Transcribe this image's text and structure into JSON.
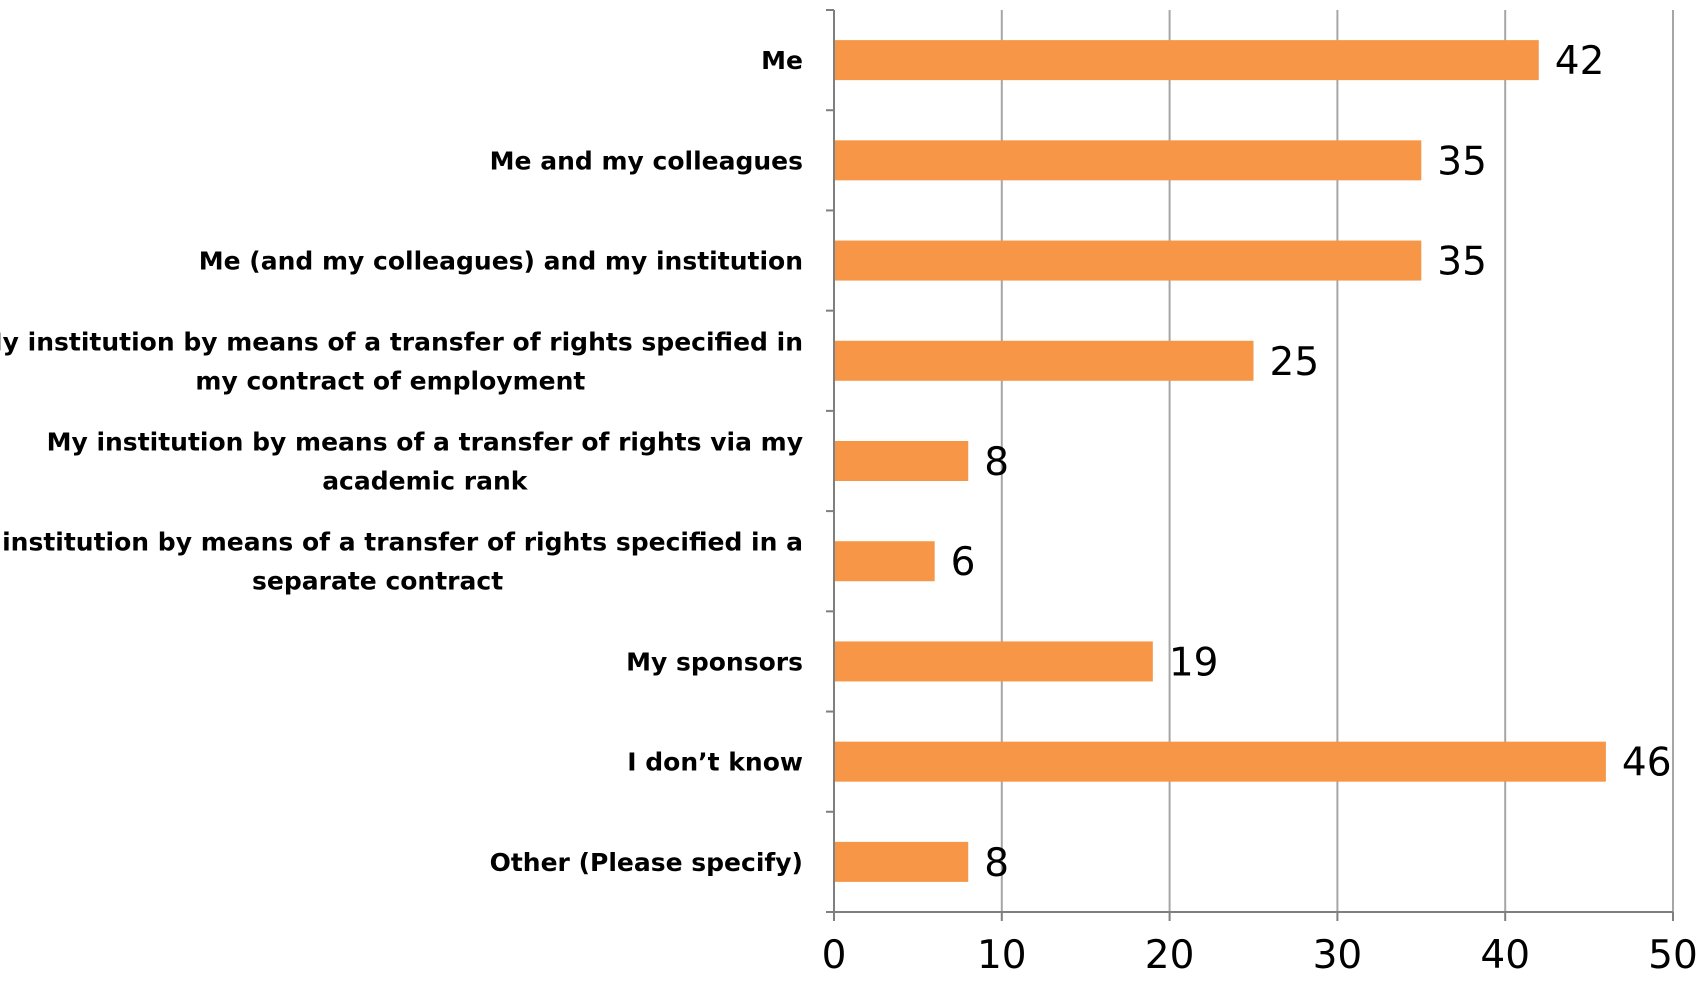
{
  "chart_data": {
    "type": "bar",
    "orientation": "horizontal",
    "title": "",
    "xlabel": "",
    "ylabel": "",
    "categories": [
      [
        "Me"
      ],
      [
        "Me and my colleagues"
      ],
      [
        "Me (and my colleagues) and my institution"
      ],
      [
        "My institution by means of a transfer of rights specified in",
        "my contract of employment"
      ],
      [
        "My institution by means of a transfer of rights via my",
        "academic rank"
      ],
      [
        "My institution by means of a transfer of rights specified in a",
        "separate contract"
      ],
      [
        "My sponsors"
      ],
      [
        "I don’t know"
      ],
      [
        "Other (Please specify)"
      ]
    ],
    "values": [
      42,
      35,
      35,
      25,
      8,
      6,
      19,
      46,
      8
    ],
    "xlim": [
      0,
      50
    ],
    "xticks": [
      0,
      10,
      20,
      30,
      40,
      50
    ],
    "grid": "vertical",
    "legend": "none",
    "data_labels": true,
    "colors": {
      "bar": "#F79646",
      "grid": "#A6A6A6",
      "axis": "#7F7F7F",
      "text": "#000000"
    }
  }
}
